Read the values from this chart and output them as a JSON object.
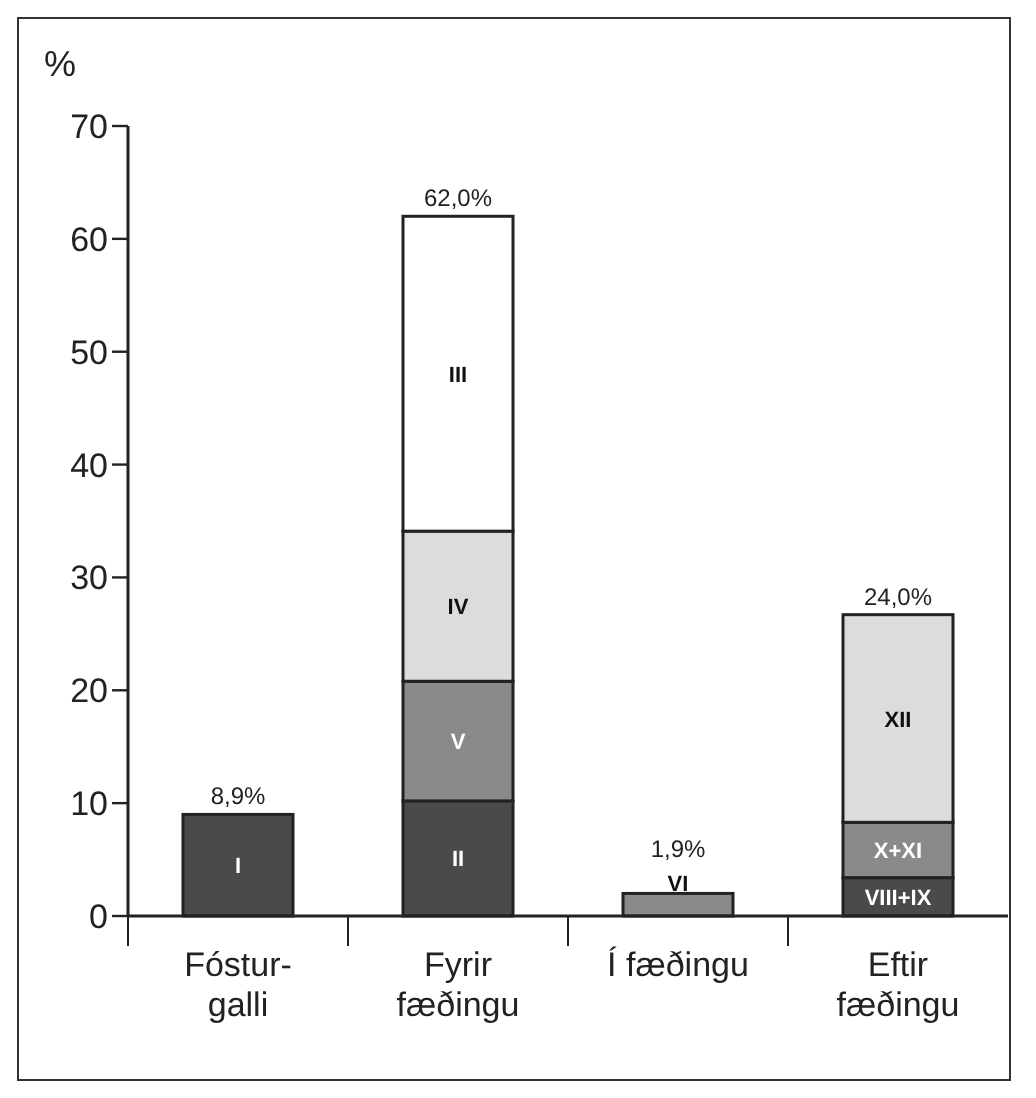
{
  "chart_data": {
    "type": "bar",
    "stacked": true,
    "ylabel": "%",
    "categories": [
      "Fóstur-\ngalli",
      "Fyrir\nfæðingu",
      "Í fæðingu",
      "Eftir\nfæðingu"
    ],
    "series": [
      {
        "name": "I",
        "color": "#4a4a4a",
        "values": [
          9.0,
          null,
          null,
          null
        ]
      },
      {
        "name": "II",
        "color": "#4a4a4a",
        "values": [
          null,
          10.2,
          null,
          null
        ]
      },
      {
        "name": "V",
        "color": "#8a8a8a",
        "values": [
          null,
          10.6,
          null,
          null
        ]
      },
      {
        "name": "IV",
        "color": "#dcdcdc",
        "values": [
          null,
          13.3,
          null,
          null
        ]
      },
      {
        "name": "III",
        "color": "#ffffff",
        "values": [
          null,
          27.9,
          null,
          null
        ]
      },
      {
        "name": "VI",
        "color": "#8a8a8a",
        "values": [
          null,
          null,
          2.0,
          null
        ]
      },
      {
        "name": "VIII+IX",
        "color": "#4a4a4a",
        "values": [
          null,
          null,
          null,
          3.4
        ]
      },
      {
        "name": "X+XI",
        "color": "#8a8a8a",
        "values": [
          null,
          null,
          null,
          4.9
        ]
      },
      {
        "name": "XII",
        "color": "#dcdcdc",
        "values": [
          null,
          null,
          null,
          18.4
        ]
      }
    ],
    "annotations": [
      {
        "text": "8,9%",
        "x": "Fóstur-\ngalli",
        "y": 9.0
      },
      {
        "text": "62,0%",
        "x": "Fyrir\nfæðingu",
        "y": 62.0
      },
      {
        "text": "1,9%",
        "x": "Í fæðingu",
        "y": 2.0
      },
      {
        "text": "24,0%",
        "x": "Eftir\nfæðingu",
        "y": 26.7
      }
    ],
    "ylim": [
      0,
      70
    ],
    "yticks": [
      0,
      10,
      20,
      30,
      40,
      50,
      60,
      70
    ],
    "grid": false
  }
}
